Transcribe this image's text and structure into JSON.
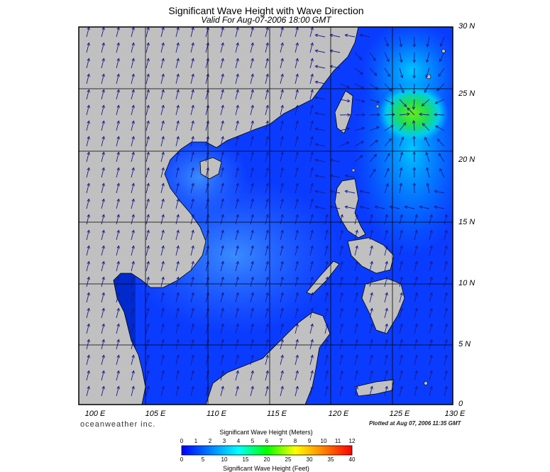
{
  "header": {
    "title": "Significant Wave Height with Wave Direction",
    "subtitle": "Valid For Aug-07-2006 18:00 GMT"
  },
  "map": {
    "lat_labels": [
      "30 N",
      "25 N",
      "20 N",
      "15 N",
      "10 N",
      "5 N",
      "0"
    ],
    "lon_labels": [
      "100 E",
      "105 E",
      "110 E",
      "115 E",
      "120 E",
      "125 E",
      "130 E"
    ],
    "land_color": "#c0c0c0",
    "ocean_low_color": "#0033ff",
    "ocean_mid_color": "#2a7bff",
    "ocean_high_color": "#00d0ff",
    "peak_color": "#44dd22",
    "arrow_color": "#1a1a8c"
  },
  "footer": {
    "brand": "oceanweather inc.",
    "plotted": "Plotted at Aug 07, 2006 11:35 GMT"
  },
  "colorbar": {
    "title_meters": "Significant Wave Height (Meters)",
    "title_feet": "Significant Wave Height (Feet)",
    "meters_ticks": [
      "0",
      "1",
      "2",
      "3",
      "4",
      "5",
      "6",
      "7",
      "8",
      "9",
      "10",
      "11",
      "12"
    ],
    "feet_ticks": [
      "0",
      "5",
      "10",
      "15",
      "20",
      "25",
      "30",
      "35",
      "40"
    ],
    "colors": [
      "#0000ff",
      "#0040ff",
      "#0080ff",
      "#00c0ff",
      "#00ffff",
      "#00ff80",
      "#00ff00",
      "#80ff00",
      "#ffff00",
      "#ffc000",
      "#ff8000",
      "#ff4000",
      "#ff0000"
    ]
  }
}
